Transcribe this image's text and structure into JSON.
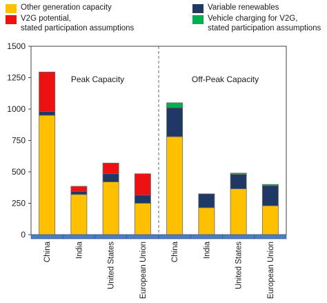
{
  "legend": [
    {
      "label": "Other generation capacity",
      "color": "#FFC000"
    },
    {
      "label": "V2G potential,\nstated participation assumptions",
      "color": "#EE1111"
    },
    {
      "label": "Variable renewables",
      "color": "#1F3864"
    },
    {
      "label": "Vehicle charging for V2G,\nstated participation assumptions",
      "color": "#00B050"
    }
  ],
  "chart_data": {
    "type": "bar",
    "stacked": true,
    "ylim": [
      0,
      1500
    ],
    "yticks": [
      0,
      250,
      500,
      750,
      1000,
      1250,
      1500
    ],
    "grid": false,
    "legend_position": "top",
    "panels": [
      {
        "label": "Peak Capacity",
        "categories": [
          "China",
          "India",
          "United States",
          "European Union"
        ],
        "series": [
          {
            "name": "Other generation capacity",
            "color": "#FFC000",
            "values": [
              950,
              320,
              420,
              250
            ]
          },
          {
            "name": "Variable renewables",
            "color": "#1F3864",
            "values": [
              30,
              25,
              65,
              65
            ]
          },
          {
            "name": "V2G potential,\nstated participation assumptions",
            "color": "#EE1111",
            "values": [
              315,
              40,
              85,
              170
            ]
          }
        ]
      },
      {
        "label": "Off-Peak Capacity",
        "categories": [
          "China",
          "India",
          "United States",
          "European Union"
        ],
        "series": [
          {
            "name": "Other generation capacity",
            "color": "#FFC000",
            "values": [
              780,
              215,
              365,
              230
            ]
          },
          {
            "name": "Variable renewables",
            "color": "#1F3864",
            "values": [
              230,
              110,
              115,
              160
            ]
          },
          {
            "name": "Vehicle charging for V2G,\nstated participation assumptions",
            "color": "#00B050",
            "values": [
              40,
              0,
              10,
              10
            ]
          }
        ]
      }
    ]
  }
}
